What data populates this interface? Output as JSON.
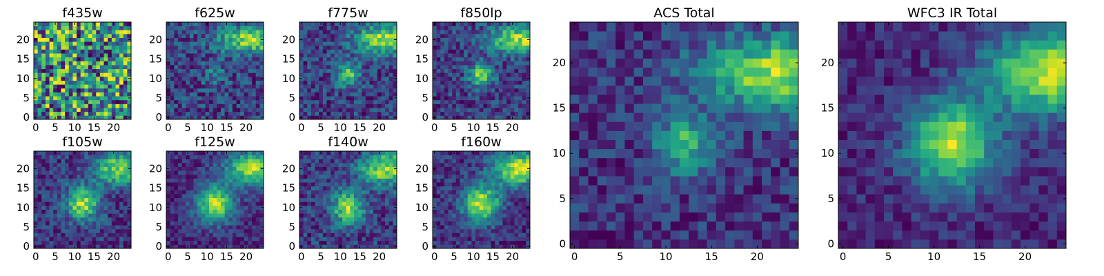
{
  "figure": {
    "description": "Grid of 25x25 pixel image cutouts in 8 filters plus combined ACS and WFC3 IR totals, viridis colormap"
  },
  "chart_data": [
    {
      "type": "heatmap",
      "title": "f435w",
      "size": [
        25,
        25
      ],
      "xlim": [
        -0.5,
        24.5
      ],
      "ylim": [
        -0.5,
        24.5
      ],
      "xticks": [
        0,
        5,
        10,
        15,
        20
      ],
      "yticks": [
        0,
        5,
        10,
        15,
        20
      ],
      "noise": 0.9,
      "sources": [],
      "seed": 11
    },
    {
      "type": "heatmap",
      "title": "f625w",
      "size": [
        25,
        25
      ],
      "xlim": [
        -0.5,
        24.5
      ],
      "ylim": [
        -0.5,
        24.5
      ],
      "xticks": [
        0,
        5,
        10,
        15,
        20
      ],
      "yticks": [
        0,
        5,
        10,
        15,
        20
      ],
      "noise": 0.6,
      "sources": [
        {
          "x": 12,
          "y": 11,
          "amp": 0.35,
          "sigma": 2.0
        },
        {
          "x": 21,
          "y": 20,
          "amp": 0.9,
          "sigma": 3.5,
          "sx": 6,
          "sy": 2.5
        }
      ],
      "seed": 23
    },
    {
      "type": "heatmap",
      "title": "f775w",
      "size": [
        25,
        25
      ],
      "xlim": [
        -0.5,
        24.5
      ],
      "ylim": [
        -0.5,
        24.5
      ],
      "xticks": [
        0,
        5,
        10,
        15,
        20
      ],
      "yticks": [
        0,
        5,
        10,
        15,
        20
      ],
      "noise": 0.55,
      "sources": [
        {
          "x": 12,
          "y": 11,
          "amp": 0.75,
          "sigma": 2.2
        },
        {
          "x": 22,
          "y": 20,
          "amp": 1.0,
          "sigma": 3.5,
          "sx": 6,
          "sy": 2.5
        }
      ],
      "seed": 37
    },
    {
      "type": "heatmap",
      "title": "f850lp",
      "size": [
        25,
        25
      ],
      "xlim": [
        -0.5,
        24.5
      ],
      "ylim": [
        -0.5,
        24.5
      ],
      "xticks": [
        0,
        5,
        10,
        15,
        20
      ],
      "yticks": [
        0,
        5,
        10,
        15,
        20
      ],
      "noise": 0.55,
      "sources": [
        {
          "x": 12,
          "y": 11,
          "amp": 0.9,
          "sigma": 2.2
        },
        {
          "x": 22,
          "y": 20,
          "amp": 1.0,
          "sigma": 3.5,
          "sx": 6,
          "sy": 2.5
        }
      ],
      "seed": 41
    },
    {
      "type": "heatmap",
      "title": "f105w",
      "size": [
        25,
        25
      ],
      "xlim": [
        -0.5,
        24.5
      ],
      "ylim": [
        -0.5,
        24.5
      ],
      "xticks": [
        0,
        5,
        10,
        15,
        20
      ],
      "yticks": [
        0,
        5,
        10,
        15,
        20
      ],
      "noise": 0.5,
      "sources": [
        {
          "x": 12,
          "y": 11,
          "amp": 1.0,
          "sigma": 3.0
        },
        {
          "x": 22,
          "y": 20,
          "amp": 0.95,
          "sigma": 4.0,
          "sx": 5,
          "sy": 3
        }
      ],
      "seed": 53
    },
    {
      "type": "heatmap",
      "title": "f125w",
      "size": [
        25,
        25
      ],
      "xlim": [
        -0.5,
        24.5
      ],
      "ylim": [
        -0.5,
        24.5
      ],
      "xticks": [
        0,
        5,
        10,
        15,
        20
      ],
      "yticks": [
        0,
        5,
        10,
        15,
        20
      ],
      "noise": 0.35,
      "sources": [
        {
          "x": 12,
          "y": 11,
          "amp": 1.0,
          "sigma": 3.4
        },
        {
          "x": 22,
          "y": 20,
          "amp": 1.0,
          "sigma": 4.0,
          "sx": 5,
          "sy": 3
        }
      ],
      "seed": 67
    },
    {
      "type": "heatmap",
      "title": "f140w",
      "size": [
        25,
        25
      ],
      "xlim": [
        -0.5,
        24.5
      ],
      "ylim": [
        -0.5,
        24.5
      ],
      "xticks": [
        0,
        5,
        10,
        15,
        20
      ],
      "yticks": [
        0,
        5,
        10,
        15,
        20
      ],
      "noise": 0.55,
      "sources": [
        {
          "x": 12,
          "y": 10,
          "amp": 1.0,
          "sigma": 3.0
        },
        {
          "x": 22,
          "y": 20,
          "amp": 1.0,
          "sigma": 4.0,
          "sx": 5,
          "sy": 3
        }
      ],
      "seed": 71
    },
    {
      "type": "heatmap",
      "title": "f160w",
      "size": [
        25,
        25
      ],
      "xlim": [
        -0.5,
        24.5
      ],
      "ylim": [
        -0.5,
        24.5
      ],
      "xticks": [
        0,
        5,
        10,
        15,
        20
      ],
      "yticks": [
        0,
        5,
        10,
        15,
        20
      ],
      "noise": 0.4,
      "sources": [
        {
          "x": 12,
          "y": 11,
          "amp": 1.0,
          "sigma": 3.3
        },
        {
          "x": 22,
          "y": 20,
          "amp": 1.0,
          "sigma": 4.0,
          "sx": 5,
          "sy": 3
        }
      ],
      "seed": 83
    },
    {
      "type": "heatmap",
      "title": "ACS Total",
      "size": [
        25,
        25
      ],
      "xlim": [
        -0.5,
        24.5
      ],
      "ylim": [
        -0.5,
        24.5
      ],
      "xticks": [
        0,
        5,
        10,
        15,
        20
      ],
      "yticks": [
        0,
        5,
        10,
        15,
        20
      ],
      "noise": 0.45,
      "sources": [
        {
          "x": 12,
          "y": 11,
          "amp": 0.75,
          "sigma": 2.2
        },
        {
          "x": 22,
          "y": 19,
          "amp": 1.0,
          "sigma": 3.5,
          "sx": 6,
          "sy": 2.8
        }
      ],
      "seed": 97
    },
    {
      "type": "heatmap",
      "title": "WFC3 IR Total",
      "size": [
        25,
        25
      ],
      "xlim": [
        -0.5,
        24.5
      ],
      "ylim": [
        -0.5,
        24.5
      ],
      "xticks": [
        0,
        5,
        10,
        15,
        20
      ],
      "yticks": [
        0,
        5,
        10,
        15,
        20
      ],
      "noise": 0.3,
      "sources": [
        {
          "x": 12,
          "y": 11,
          "amp": 1.0,
          "sigma": 3.3
        },
        {
          "x": 23,
          "y": 19,
          "amp": 1.0,
          "sigma": 4.0,
          "sx": 5,
          "sy": 3.2
        }
      ],
      "seed": 109
    }
  ]
}
